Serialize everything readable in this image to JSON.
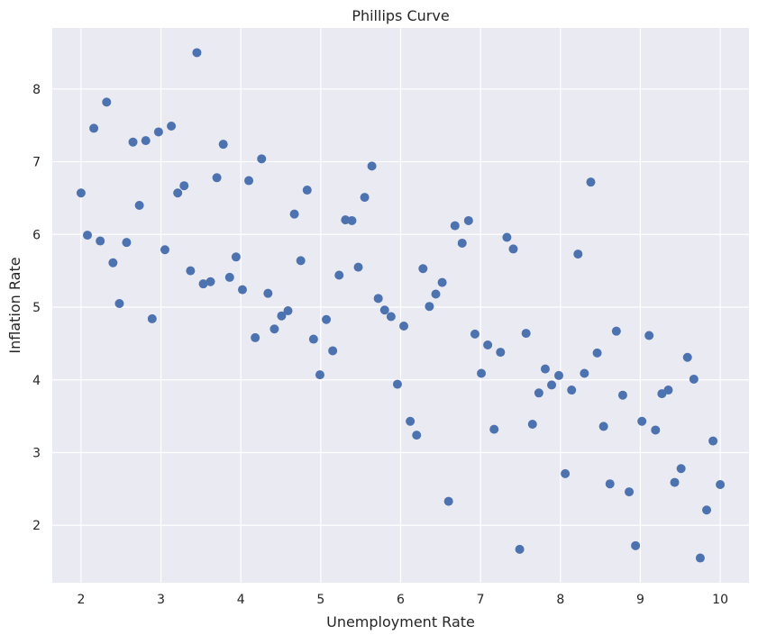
{
  "chart_data": {
    "type": "scatter",
    "title": "Phillips Curve",
    "xlabel": "Unemployment Rate",
    "ylabel": "Inflation Rate",
    "xlim": [
      1.64,
      10.36
    ],
    "ylim": [
      1.21,
      8.84
    ],
    "xticks": [
      2,
      3,
      4,
      5,
      6,
      7,
      8,
      9,
      10
    ],
    "yticks": [
      2,
      3,
      4,
      5,
      6,
      7,
      8
    ],
    "grid": true,
    "legend": "none",
    "colors": {
      "background": "#EAEAF2",
      "grid": "#FFFFFF",
      "point": "#4C72B0",
      "text": "#262626"
    },
    "points": [
      [
        2.0,
        6.57
      ],
      [
        2.08,
        5.99
      ],
      [
        2.16,
        7.46
      ],
      [
        2.24,
        5.91
      ],
      [
        2.32,
        7.82
      ],
      [
        2.4,
        5.61
      ],
      [
        2.48,
        5.05
      ],
      [
        2.57,
        5.89
      ],
      [
        2.65,
        7.27
      ],
      [
        2.73,
        6.4
      ],
      [
        2.81,
        7.29
      ],
      [
        2.89,
        4.84
      ],
      [
        2.97,
        7.41
      ],
      [
        3.05,
        5.79
      ],
      [
        3.13,
        7.49
      ],
      [
        3.21,
        6.57
      ],
      [
        3.29,
        6.67
      ],
      [
        3.37,
        5.5
      ],
      [
        3.45,
        8.5
      ],
      [
        3.53,
        5.32
      ],
      [
        3.62,
        5.35
      ],
      [
        3.7,
        6.78
      ],
      [
        3.78,
        7.24
      ],
      [
        3.86,
        5.41
      ],
      [
        3.94,
        5.69
      ],
      [
        4.02,
        5.24
      ],
      [
        4.1,
        6.74
      ],
      [
        4.18,
        4.58
      ],
      [
        4.26,
        7.04
      ],
      [
        4.34,
        5.19
      ],
      [
        4.42,
        4.7
      ],
      [
        4.51,
        4.88
      ],
      [
        4.59,
        4.95
      ],
      [
        4.67,
        6.28
      ],
      [
        4.75,
        5.64
      ],
      [
        4.83,
        6.61
      ],
      [
        4.91,
        4.56
      ],
      [
        4.99,
        4.07
      ],
      [
        5.07,
        4.83
      ],
      [
        5.15,
        4.4
      ],
      [
        5.23,
        5.44
      ],
      [
        5.31,
        6.2
      ],
      [
        5.39,
        6.19
      ],
      [
        5.47,
        5.55
      ],
      [
        5.55,
        6.51
      ],
      [
        5.64,
        6.94
      ],
      [
        5.72,
        5.12
      ],
      [
        5.8,
        4.96
      ],
      [
        5.88,
        4.87
      ],
      [
        5.96,
        3.94
      ],
      [
        6.04,
        4.74
      ],
      [
        6.12,
        3.43
      ],
      [
        6.2,
        3.24
      ],
      [
        6.28,
        5.53
      ],
      [
        6.36,
        5.01
      ],
      [
        6.44,
        5.18
      ],
      [
        6.52,
        5.34
      ],
      [
        6.6,
        2.33
      ],
      [
        6.68,
        6.12
      ],
      [
        6.77,
        5.88
      ],
      [
        6.85,
        6.19
      ],
      [
        6.93,
        4.63
      ],
      [
        7.01,
        4.09
      ],
      [
        7.09,
        4.48
      ],
      [
        7.17,
        3.32
      ],
      [
        7.25,
        4.38
      ],
      [
        7.33,
        5.96
      ],
      [
        7.41,
        5.8
      ],
      [
        7.49,
        1.67
      ],
      [
        7.57,
        4.64
      ],
      [
        7.65,
        3.39
      ],
      [
        7.73,
        3.82
      ],
      [
        7.81,
        4.15
      ],
      [
        7.89,
        3.93
      ],
      [
        7.98,
        4.06
      ],
      [
        8.06,
        2.71
      ],
      [
        8.14,
        3.86
      ],
      [
        8.22,
        5.73
      ],
      [
        8.3,
        4.09
      ],
      [
        8.38,
        6.72
      ],
      [
        8.46,
        4.37
      ],
      [
        8.54,
        3.36
      ],
      [
        8.62,
        2.57
      ],
      [
        8.7,
        4.67
      ],
      [
        8.78,
        3.79
      ],
      [
        8.86,
        2.46
      ],
      [
        8.94,
        1.72
      ],
      [
        9.02,
        3.43
      ],
      [
        9.11,
        4.61
      ],
      [
        9.19,
        3.31
      ],
      [
        9.27,
        3.81
      ],
      [
        9.35,
        3.86
      ],
      [
        9.43,
        2.59
      ],
      [
        9.51,
        2.78
      ],
      [
        9.59,
        4.31
      ],
      [
        9.67,
        4.01
      ],
      [
        9.75,
        1.55
      ],
      [
        9.83,
        2.21
      ],
      [
        9.91,
        3.16
      ],
      [
        10.0,
        2.56
      ]
    ]
  }
}
